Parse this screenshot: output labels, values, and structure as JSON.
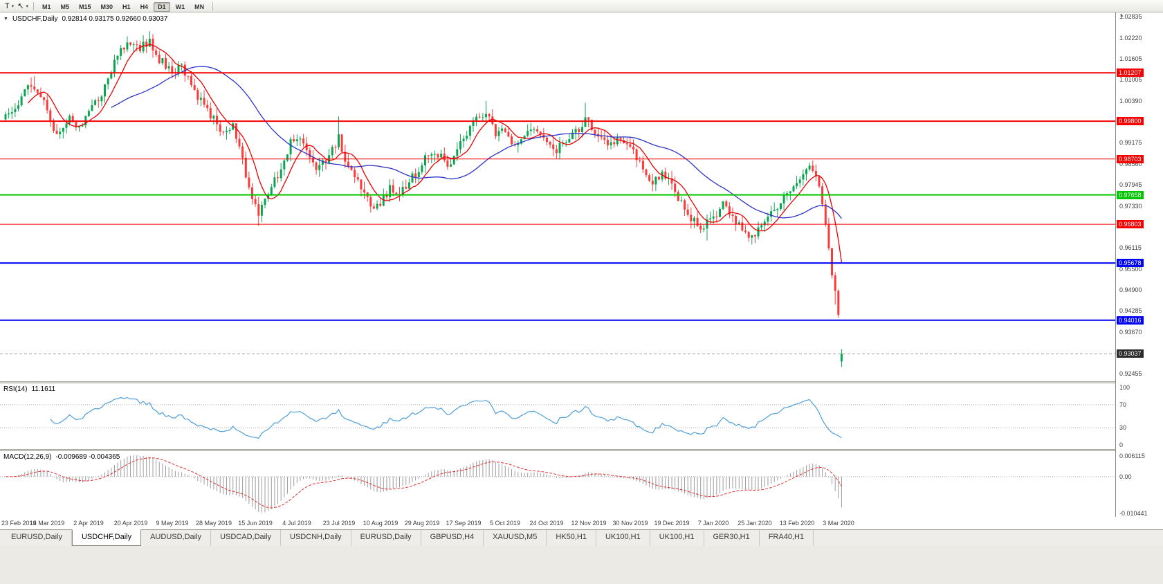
{
  "toolbar": {
    "tools": [
      {
        "name": "text-tool",
        "glyph": "T"
      },
      {
        "name": "cursor-tool",
        "glyph": "↖"
      }
    ],
    "timeframes": [
      "M1",
      "M5",
      "M15",
      "M30",
      "H1",
      "H4",
      "D1",
      "W1",
      "MN"
    ],
    "active_timeframe": "D1"
  },
  "chart_data": {
    "type": "candlestick",
    "symbol": "USDCHF",
    "period": "Daily",
    "title": "USDCHF,Daily",
    "ohlc_display": "0.92814 0.93175 0.92660 0.93037",
    "last_bar": {
      "open": 0.92814,
      "high": 0.93175,
      "low": 0.9266,
      "close": 0.93037
    },
    "bars": 262,
    "seed": 20200309,
    "price_axis": {
      "min": 0.9224,
      "max": 1.0296,
      "ticks": [
        "1.02835",
        "1.02220",
        "1.01605",
        "1.01005",
        "1.00390",
        "0.99175",
        "0.98560",
        "0.97945",
        "0.97330",
        "0.96115",
        "0.95500",
        "0.94900",
        "0.94285",
        "0.93670",
        "0.92455"
      ]
    },
    "h_lines": [
      {
        "price": 1.01207,
        "label": "1.01207",
        "color": "#f60000",
        "width": 2
      },
      {
        "price": 0.998,
        "label": "0.99800",
        "color": "#f60000",
        "width": 2
      },
      {
        "price": 0.98703,
        "label": "0.98703",
        "color": "#f60000",
        "width": 1
      },
      {
        "price": 0.97658,
        "label": "0.97658",
        "color": "#00c600",
        "width": 2
      },
      {
        "price": 0.96803,
        "label": "0.96803",
        "color": "#f60000",
        "width": 1
      },
      {
        "price": 0.95678,
        "label": "0.95678",
        "color": "#0000f6",
        "width": 2
      },
      {
        "price": 0.94016,
        "label": "0.94016",
        "color": "#0000f6",
        "width": 2
      }
    ],
    "current_price": {
      "value": 0.93037,
      "label": "0.93037",
      "badge_color": "#2b2b2b"
    },
    "candle_colors": {
      "up": "#0aa551",
      "down": "#fb3a3a"
    },
    "moving_averages": [
      {
        "period": 8,
        "color": "#e80000"
      },
      {
        "period": 34,
        "color": "#2b32c8"
      }
    ],
    "price_path_anchors": [
      [
        0,
        0.999
      ],
      [
        4,
        1.003
      ],
      [
        8,
        1.009
      ],
      [
        11,
        1.006
      ],
      [
        13,
        1.0005
      ],
      [
        16,
        0.9935
      ],
      [
        20,
        0.9985
      ],
      [
        23,
        0.996
      ],
      [
        26,
        1.001
      ],
      [
        30,
        1.006
      ],
      [
        33,
        1.013
      ],
      [
        36,
        1.019
      ],
      [
        39,
        1.0215
      ],
      [
        42,
        1.0195
      ],
      [
        45,
        1.021
      ],
      [
        48,
        1.016
      ],
      [
        52,
        1.0125
      ],
      [
        55,
        1.014
      ],
      [
        58,
        1.008
      ],
      [
        62,
        1.002
      ],
      [
        65,
        0.999
      ],
      [
        68,
        0.9935
      ],
      [
        71,
        0.9975
      ],
      [
        74,
        0.987
      ],
      [
        77,
        0.9745
      ],
      [
        79,
        0.971
      ],
      [
        81,
        0.9745
      ],
      [
        84,
        0.9805
      ],
      [
        87,
        0.987
      ],
      [
        89,
        0.9915
      ],
      [
        91,
        0.9935
      ],
      [
        94,
        0.989
      ],
      [
        97,
        0.9845
      ],
      [
        100,
        0.9865
      ],
      [
        103,
        0.9915
      ],
      [
        104,
        0.993
      ],
      [
        106,
        0.9875
      ],
      [
        109,
        0.9815
      ],
      [
        112,
        0.9775
      ],
      [
        115,
        0.9725
      ],
      [
        117,
        0.9745
      ],
      [
        120,
        0.9785
      ],
      [
        123,
        0.9765
      ],
      [
        126,
        0.9805
      ],
      [
        130,
        0.9855
      ],
      [
        133,
        0.9895
      ],
      [
        136,
        0.9875
      ],
      [
        139,
        0.9845
      ],
      [
        143,
        0.993
      ],
      [
        146,
        0.9975
      ],
      [
        149,
        0.9995
      ],
      [
        151,
        1.0
      ],
      [
        153,
        0.994
      ],
      [
        156,
        0.9955
      ],
      [
        158,
        0.9905
      ],
      [
        162,
        0.9935
      ],
      [
        166,
        0.996
      ],
      [
        169,
        0.993
      ],
      [
        172,
        0.9895
      ],
      [
        175,
        0.9925
      ],
      [
        179,
        0.996
      ],
      [
        181,
        0.999
      ],
      [
        184,
        0.9945
      ],
      [
        188,
        0.9905
      ],
      [
        192,
        0.993
      ],
      [
        195,
        0.99
      ],
      [
        198,
        0.9855
      ],
      [
        202,
        0.9805
      ],
      [
        205,
        0.9825
      ],
      [
        208,
        0.979
      ],
      [
        211,
        0.974
      ],
      [
        214,
        0.9695
      ],
      [
        217,
        0.9672
      ],
      [
        221,
        0.97
      ],
      [
        224,
        0.9735
      ],
      [
        227,
        0.9695
      ],
      [
        230,
        0.9662
      ],
      [
        233,
        0.9638
      ],
      [
        236,
        0.968
      ],
      [
        239,
        0.9715
      ],
      [
        242,
        0.9745
      ],
      [
        245,
        0.9775
      ],
      [
        247,
        0.9805
      ],
      [
        250,
        0.9835
      ],
      [
        252,
        0.9848
      ],
      [
        254,
        0.979
      ],
      [
        255,
        0.9735
      ],
      [
        256,
        0.968
      ],
      [
        257,
        0.961
      ],
      [
        258,
        0.953
      ],
      [
        259,
        0.9487
      ],
      [
        260,
        0.942
      ],
      [
        261,
        0.9304
      ]
    ],
    "wick_boosts": {
      "9": 0.003,
      "79": -0.003,
      "104": 0.0052,
      "150": 0.0038,
      "181": 0.0042,
      "219": -0.0035,
      "259": -0.004
    },
    "date_labels": [
      [
        0,
        "23 Feb 2019"
      ],
      [
        13,
        "14 Mar 2019"
      ],
      [
        26,
        "2 Apr 2019"
      ],
      [
        39,
        "20 Apr 2019"
      ],
      [
        52,
        "9 May 2019"
      ],
      [
        65,
        "28 May 2019"
      ],
      [
        78,
        "15 Jun 2019"
      ],
      [
        91,
        "4 Jul 2019"
      ],
      [
        104,
        "23 Jul 2019"
      ],
      [
        117,
        "10 Aug 2019"
      ],
      [
        130,
        "29 Aug 2019"
      ],
      [
        143,
        "17 Sep 2019"
      ],
      [
        156,
        "5 Oct 2019"
      ],
      [
        169,
        "24 Oct 2019"
      ],
      [
        182,
        "12 Nov 2019"
      ],
      [
        195,
        "30 Nov 2019"
      ],
      [
        208,
        "19 Dec 2019"
      ],
      [
        221,
        "7 Jan 2020"
      ],
      [
        234,
        "25 Jan 2020"
      ],
      [
        247,
        "13 Feb 2020"
      ],
      [
        260,
        "3 Mar 2020"
      ]
    ],
    "rsi": {
      "label": "RSI(14)",
      "value": "11.1611",
      "period": 14,
      "levels": [
        70,
        30
      ],
      "axis_ticks": [
        "100",
        "70",
        "30",
        "0"
      ],
      "line_color": "#4d9ed9"
    },
    "macd": {
      "label": "MACD(12,26,9)",
      "values": "-0.009689 -0.004365",
      "fast": 12,
      "slow": 26,
      "signal": 9,
      "axis_ticks": [
        "0.006115",
        "0.00",
        "-0.010441"
      ],
      "histogram_color": "#9b9b9b",
      "signal_color": "#e03131"
    }
  },
  "tabs": {
    "active_index": 1,
    "items": [
      "EURUSD,Daily",
      "USDCHF,Daily",
      "AUDUSD,Daily",
      "USDCAD,Daily",
      "USDCNH,Daily",
      "EURUSD,Daily",
      "GBPUSD,H4",
      "XAUUSD,M5",
      "HK50,H1",
      "UK100,H1",
      "UK100,H1",
      "GER30,H1",
      "FRA40,H1"
    ]
  }
}
